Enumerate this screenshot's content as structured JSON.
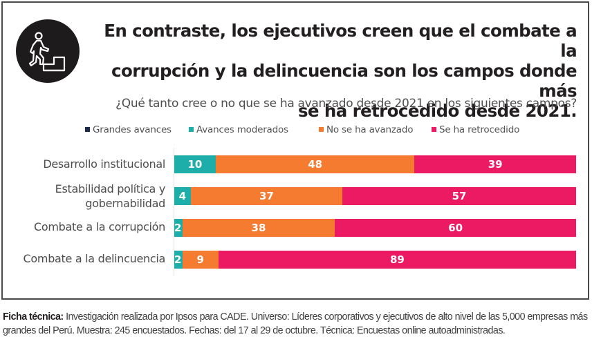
{
  "header": {
    "icon": "person-climbing-stairs-icon",
    "title_lines": [
      "En contraste, los ejecutivos creen que el combate a la",
      "corrupción y la delincuencia son los campos donde más",
      "se ha retrocedido desde 2021."
    ]
  },
  "colors": {
    "grandes_avances": "#1c2a4e",
    "avances_moderados": "#1eaeaa",
    "no_se_ha_avanzado": "#f47b30",
    "se_ha_retrocedido": "#ec1a62"
  },
  "chart_data": {
    "type": "bar",
    "orientation": "horizontal",
    "stacked": true,
    "title": "En contraste, los ejecutivos creen que el combate a la corrupción y la delincuencia son los campos donde más se ha retrocedido desde 2021.",
    "subtitle": "¿Qué tanto cree o no que se ha avanzado desde 2021 en los siguientes campos?",
    "xlabel": "",
    "ylabel": "",
    "unit": "%",
    "legend_position": "top",
    "grid": false,
    "categories": [
      "Desarrollo institucional",
      "Estabilidad política y gobernabilidad",
      "Combate a la corrupción",
      "Combate a la delincuencia"
    ],
    "category_label_lines": [
      [
        "Desarrollo institucional"
      ],
      [
        "Estabilidad política y",
        "gobernabilidad"
      ],
      [
        "Combate a la corrupción"
      ],
      [
        "Combate a la delincuencia"
      ]
    ],
    "series": [
      {
        "name": "Grandes avances",
        "color": "#1c2a4e",
        "values": [
          0,
          0,
          0,
          0
        ]
      },
      {
        "name": "Avances moderados",
        "color": "#1eaeaa",
        "values": [
          10,
          4,
          2,
          2
        ]
      },
      {
        "name": "No se ha avanzado",
        "color": "#f47b30",
        "values": [
          48,
          37,
          38,
          9
        ]
      },
      {
        "name": "Se ha retrocedido",
        "color": "#ec1a62",
        "values": [
          39,
          57,
          60,
          89
        ]
      }
    ]
  },
  "footer": {
    "label": "Ficha técnica:",
    "text": " Investigación realizada por Ipsos para CADE. Universo: Líderes corporativos y ejecutivos de alto nivel de las 5,000 empresas más grandes del Perú. Muestra: 245 encuestados. Fechas: del 17 al 29 de octubre. Técnica: Encuestas online autoadministradas."
  }
}
